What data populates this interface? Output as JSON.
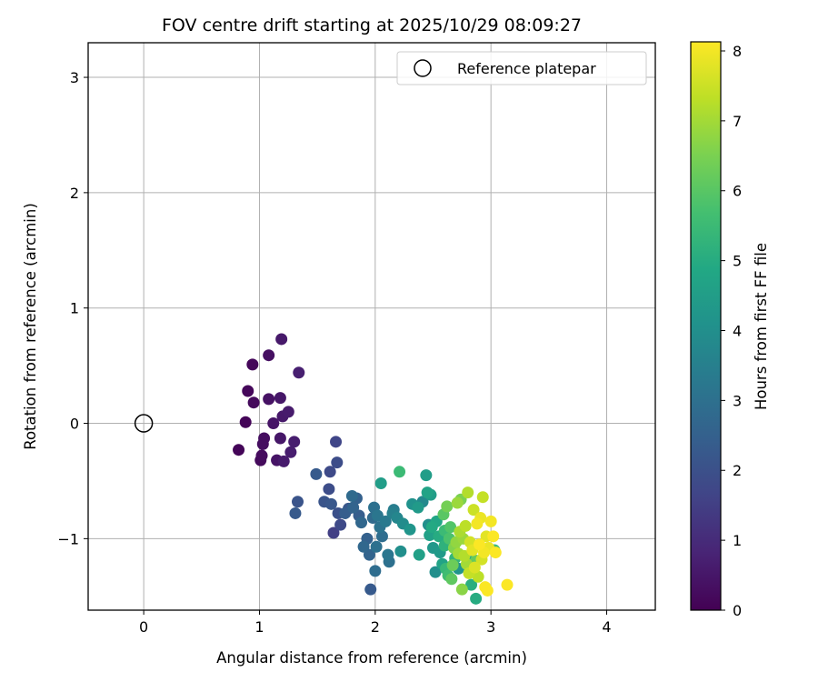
{
  "chart_data": {
    "type": "scatter",
    "title": "FOV centre drift starting at 2025/10/29 08:09:27",
    "xlabel": "Angular distance from reference (arcmin)",
    "ylabel": "Rotation from reference (arcmin)",
    "xlim": [
      -0.48,
      4.42
    ],
    "ylim": [
      -1.62,
      3.3
    ],
    "x_ticks": [
      0,
      1,
      2,
      3,
      4
    ],
    "y_ticks": [
      -1,
      0,
      1,
      2,
      3
    ],
    "grid": true,
    "legend": {
      "placement": "top-right",
      "entries": [
        {
          "label": "Reference platepar",
          "marker": "open-circle"
        }
      ]
    },
    "reference_point": {
      "x": 0,
      "y": 0
    },
    "colorbar": {
      "label": "Hours from first FF file",
      "colormap": "viridis",
      "range": [
        0,
        8.13
      ],
      "ticks": [
        0,
        1,
        2,
        3,
        4,
        5,
        6,
        7,
        8
      ]
    },
    "points": [
      {
        "x": 0.82,
        "y": -0.23,
        "t": 0.1
      },
      {
        "x": 0.88,
        "y": 0.01,
        "t": 0.1
      },
      {
        "x": 0.9,
        "y": 0.28,
        "t": 0.15
      },
      {
        "x": 0.95,
        "y": 0.18,
        "t": 0.2
      },
      {
        "x": 0.94,
        "y": 0.51,
        "t": 0.15
      },
      {
        "x": 1.01,
        "y": -0.32,
        "t": 0.2
      },
      {
        "x": 1.02,
        "y": -0.28,
        "t": 0.25
      },
      {
        "x": 1.03,
        "y": -0.18,
        "t": 0.3
      },
      {
        "x": 1.04,
        "y": -0.13,
        "t": 0.3
      },
      {
        "x": 1.08,
        "y": 0.59,
        "t": 0.35
      },
      {
        "x": 1.08,
        "y": 0.21,
        "t": 0.4
      },
      {
        "x": 1.12,
        "y": 0.0,
        "t": 0.45
      },
      {
        "x": 1.15,
        "y": -0.32,
        "t": 0.45
      },
      {
        "x": 1.18,
        "y": 0.22,
        "t": 0.5
      },
      {
        "x": 1.18,
        "y": -0.13,
        "t": 0.5
      },
      {
        "x": 1.19,
        "y": 0.73,
        "t": 0.55
      },
      {
        "x": 1.2,
        "y": 0.06,
        "t": 0.55
      },
      {
        "x": 1.21,
        "y": -0.33,
        "t": 0.6
      },
      {
        "x": 1.25,
        "y": 0.1,
        "t": 0.6
      },
      {
        "x": 1.27,
        "y": -0.25,
        "t": 0.65
      },
      {
        "x": 1.3,
        "y": -0.16,
        "t": 0.65
      },
      {
        "x": 1.34,
        "y": 0.44,
        "t": 0.7
      },
      {
        "x": 1.31,
        "y": -0.78,
        "t": 2.3
      },
      {
        "x": 1.33,
        "y": -0.68,
        "t": 2.1
      },
      {
        "x": 1.49,
        "y": -0.44,
        "t": 2.3
      },
      {
        "x": 1.56,
        "y": -0.68,
        "t": 2.1
      },
      {
        "x": 1.6,
        "y": -0.57,
        "t": 1.9
      },
      {
        "x": 1.61,
        "y": -0.42,
        "t": 1.8
      },
      {
        "x": 1.62,
        "y": -0.7,
        "t": 2.2
      },
      {
        "x": 1.64,
        "y": -0.95,
        "t": 1.5
      },
      {
        "x": 1.66,
        "y": -0.16,
        "t": 1.7
      },
      {
        "x": 1.67,
        "y": -0.34,
        "t": 1.9
      },
      {
        "x": 1.68,
        "y": -0.78,
        "t": 2.0
      },
      {
        "x": 1.7,
        "y": -0.88,
        "t": 1.8
      },
      {
        "x": 1.74,
        "y": -0.78,
        "t": 2.4
      },
      {
        "x": 1.77,
        "y": -0.74,
        "t": 2.2
      },
      {
        "x": 1.81,
        "y": -0.73,
        "t": 2.6
      },
      {
        "x": 1.8,
        "y": -0.63,
        "t": 2.8
      },
      {
        "x": 1.84,
        "y": -0.65,
        "t": 2.5
      },
      {
        "x": 1.86,
        "y": -0.8,
        "t": 2.4
      },
      {
        "x": 1.88,
        "y": -0.86,
        "t": 2.7
      },
      {
        "x": 1.9,
        "y": -1.07,
        "t": 2.7
      },
      {
        "x": 1.93,
        "y": -1.0,
        "t": 2.5
      },
      {
        "x": 1.95,
        "y": -1.14,
        "t": 2.6
      },
      {
        "x": 1.96,
        "y": -1.44,
        "t": 2.3
      },
      {
        "x": 1.98,
        "y": -0.82,
        "t": 2.8
      },
      {
        "x": 1.99,
        "y": -0.73,
        "t": 3.0
      },
      {
        "x": 2.0,
        "y": -1.28,
        "t": 2.9
      },
      {
        "x": 2.01,
        "y": -1.07,
        "t": 3.0
      },
      {
        "x": 2.02,
        "y": -0.8,
        "t": 3.2
      },
      {
        "x": 2.04,
        "y": -0.9,
        "t": 3.1
      },
      {
        "x": 2.05,
        "y": -0.52,
        "t": 4.5
      },
      {
        "x": 2.06,
        "y": -0.98,
        "t": 2.9
      },
      {
        "x": 2.09,
        "y": -0.85,
        "t": 3.3
      },
      {
        "x": 2.11,
        "y": -1.14,
        "t": 3.2
      },
      {
        "x": 2.12,
        "y": -1.2,
        "t": 3.0
      },
      {
        "x": 2.15,
        "y": -0.78,
        "t": 3.5
      },
      {
        "x": 2.16,
        "y": -0.75,
        "t": 3.4
      },
      {
        "x": 2.19,
        "y": -0.82,
        "t": 3.7
      },
      {
        "x": 2.21,
        "y": -0.42,
        "t": 5.5
      },
      {
        "x": 2.22,
        "y": -1.11,
        "t": 4.0
      },
      {
        "x": 2.24,
        "y": -0.87,
        "t": 3.9
      },
      {
        "x": 2.3,
        "y": -0.92,
        "t": 4.2
      },
      {
        "x": 2.32,
        "y": -0.7,
        "t": 4.1
      },
      {
        "x": 2.37,
        "y": -0.73,
        "t": 4.4
      },
      {
        "x": 2.38,
        "y": -1.14,
        "t": 4.6
      },
      {
        "x": 2.41,
        "y": -0.68,
        "t": 3.8
      },
      {
        "x": 2.44,
        "y": -0.45,
        "t": 4.5
      },
      {
        "x": 2.45,
        "y": -0.6,
        "t": 4.7
      },
      {
        "x": 2.46,
        "y": -0.88,
        "t": 4.0
      },
      {
        "x": 2.47,
        "y": -0.97,
        "t": 4.6
      },
      {
        "x": 2.48,
        "y": -0.62,
        "t": 4.5
      },
      {
        "x": 2.49,
        "y": -0.9,
        "t": 4.9
      },
      {
        "x": 2.5,
        "y": -1.08,
        "t": 4.3
      },
      {
        "x": 2.52,
        "y": -1.29,
        "t": 4.0
      },
      {
        "x": 2.53,
        "y": -0.85,
        "t": 4.8
      },
      {
        "x": 2.55,
        "y": -0.98,
        "t": 5.0
      },
      {
        "x": 2.56,
        "y": -1.12,
        "t": 4.4
      },
      {
        "x": 2.58,
        "y": -1.22,
        "t": 4.7
      },
      {
        "x": 2.59,
        "y": -0.79,
        "t": 6.0
      },
      {
        "x": 2.6,
        "y": -1.06,
        "t": 5.2
      },
      {
        "x": 2.61,
        "y": -1.26,
        "t": 5.4
      },
      {
        "x": 2.62,
        "y": -0.72,
        "t": 6.4
      },
      {
        "x": 2.63,
        "y": -1.32,
        "t": 5.6
      },
      {
        "x": 2.64,
        "y": -1.0,
        "t": 5.8
      },
      {
        "x": 2.65,
        "y": -0.9,
        "t": 5.9
      },
      {
        "x": 2.66,
        "y": -1.35,
        "t": 6.1
      },
      {
        "x": 2.67,
        "y": -1.23,
        "t": 6.3
      },
      {
        "x": 2.68,
        "y": -1.08,
        "t": 6.6
      },
      {
        "x": 2.69,
        "y": -1.17,
        "t": 5.3
      },
      {
        "x": 2.7,
        "y": -1.03,
        "t": 6.8
      },
      {
        "x": 2.71,
        "y": -0.69,
        "t": 6.9
      },
      {
        "x": 2.72,
        "y": -1.13,
        "t": 7.0
      },
      {
        "x": 2.73,
        "y": -0.94,
        "t": 7.1
      },
      {
        "x": 2.74,
        "y": -0.66,
        "t": 6.5
      },
      {
        "x": 2.75,
        "y": -1.44,
        "t": 6.7
      },
      {
        "x": 2.76,
        "y": -1.0,
        "t": 6.9
      },
      {
        "x": 2.77,
        "y": -1.15,
        "t": 7.2
      },
      {
        "x": 2.78,
        "y": -0.89,
        "t": 7.3
      },
      {
        "x": 2.79,
        "y": -1.22,
        "t": 7.0
      },
      {
        "x": 2.8,
        "y": -0.6,
        "t": 7.2
      },
      {
        "x": 2.81,
        "y": -1.3,
        "t": 7.4
      },
      {
        "x": 2.82,
        "y": -1.03,
        "t": 7.6
      },
      {
        "x": 2.83,
        "y": -1.4,
        "t": 5.1
      },
      {
        "x": 2.84,
        "y": -1.1,
        "t": 7.8
      },
      {
        "x": 2.85,
        "y": -0.75,
        "t": 7.5
      },
      {
        "x": 2.86,
        "y": -1.25,
        "t": 7.7
      },
      {
        "x": 2.87,
        "y": -1.52,
        "t": 5.0
      },
      {
        "x": 2.88,
        "y": -0.87,
        "t": 8.0
      },
      {
        "x": 2.89,
        "y": -1.33,
        "t": 7.3
      },
      {
        "x": 2.9,
        "y": -1.05,
        "t": 8.1
      },
      {
        "x": 2.91,
        "y": -0.82,
        "t": 7.9
      },
      {
        "x": 2.92,
        "y": -1.18,
        "t": 7.6
      },
      {
        "x": 2.93,
        "y": -0.64,
        "t": 7.4
      },
      {
        "x": 2.94,
        "y": -1.12,
        "t": 8.0
      },
      {
        "x": 2.95,
        "y": -1.42,
        "t": 8.1
      },
      {
        "x": 2.96,
        "y": -0.98,
        "t": 7.8
      },
      {
        "x": 2.97,
        "y": -1.45,
        "t": 8.1
      },
      {
        "x": 2.98,
        "y": -1.08,
        "t": 7.9
      },
      {
        "x": 3.0,
        "y": -0.85,
        "t": 8.0
      },
      {
        "x": 3.02,
        "y": -0.98,
        "t": 8.1
      },
      {
        "x": 3.03,
        "y": -1.1,
        "t": 5.5
      },
      {
        "x": 3.04,
        "y": -1.12,
        "t": 8.1
      },
      {
        "x": 3.14,
        "y": -1.4,
        "t": 8.1
      },
      {
        "x": 2.83,
        "y": -1.2,
        "t": 4.6
      },
      {
        "x": 2.6,
        "y": -0.93,
        "t": 5.5
      },
      {
        "x": 2.72,
        "y": -1.26,
        "t": 4.2
      },
      {
        "x": 2.87,
        "y": -1.19,
        "t": 6.2
      }
    ]
  }
}
